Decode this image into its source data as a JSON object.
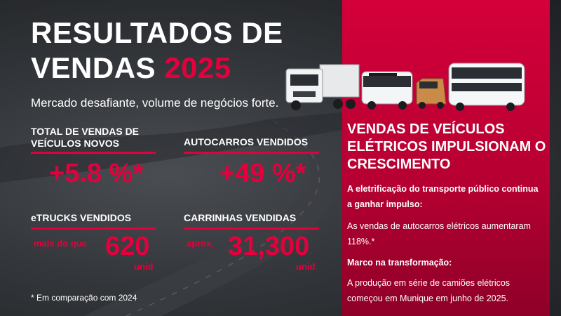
{
  "header": {
    "title_line1": "RESULTADOS DE",
    "title_line2_prefix": "VENDAS",
    "title_year": "2025",
    "subtitle": "Mercado desafiante, volume de negócios forte."
  },
  "stats": {
    "vehicles": {
      "label_line1": "TOTAL DE VENDAS DE",
      "label_line2": "VEÍCULOS NOVOS",
      "value": "+5.8 %*"
    },
    "buses": {
      "label": "AUTOCARROS VENDIDOS",
      "value": "+49 %*"
    },
    "etrucks": {
      "label": "eTRUCKS VENDIDOS",
      "prefix": "mais do que",
      "value": "620",
      "unit": "unid"
    },
    "vans": {
      "label": "CARRINHAS VENDIDAS",
      "prefix": "aprox.",
      "value": "31,300",
      "unit": "unid"
    }
  },
  "footnote": "* Em comparação com 2024",
  "panel": {
    "title_line1": "VENDAS DE VEÍCULOS",
    "title_line2": "ELÉTRICOS IMPULSIONAM O",
    "title_line3": "CRESCIMENTO",
    "intro_line1": "A eletrificação do transporte público continua",
    "intro_line2": "a ganhar impulso:",
    "para1_line1": "As vendas de autocarros elétricos aumentaram",
    "para1_line2": "118%.*",
    "milestone": "Marco na transformação:",
    "para2_line1": "A produção em série de camiões elétricos",
    "para2_line2": "começou em Munique em junho de 2025."
  },
  "colors": {
    "accent": "#e4003c",
    "panel": "#c8003a",
    "background": "#2f3236"
  }
}
